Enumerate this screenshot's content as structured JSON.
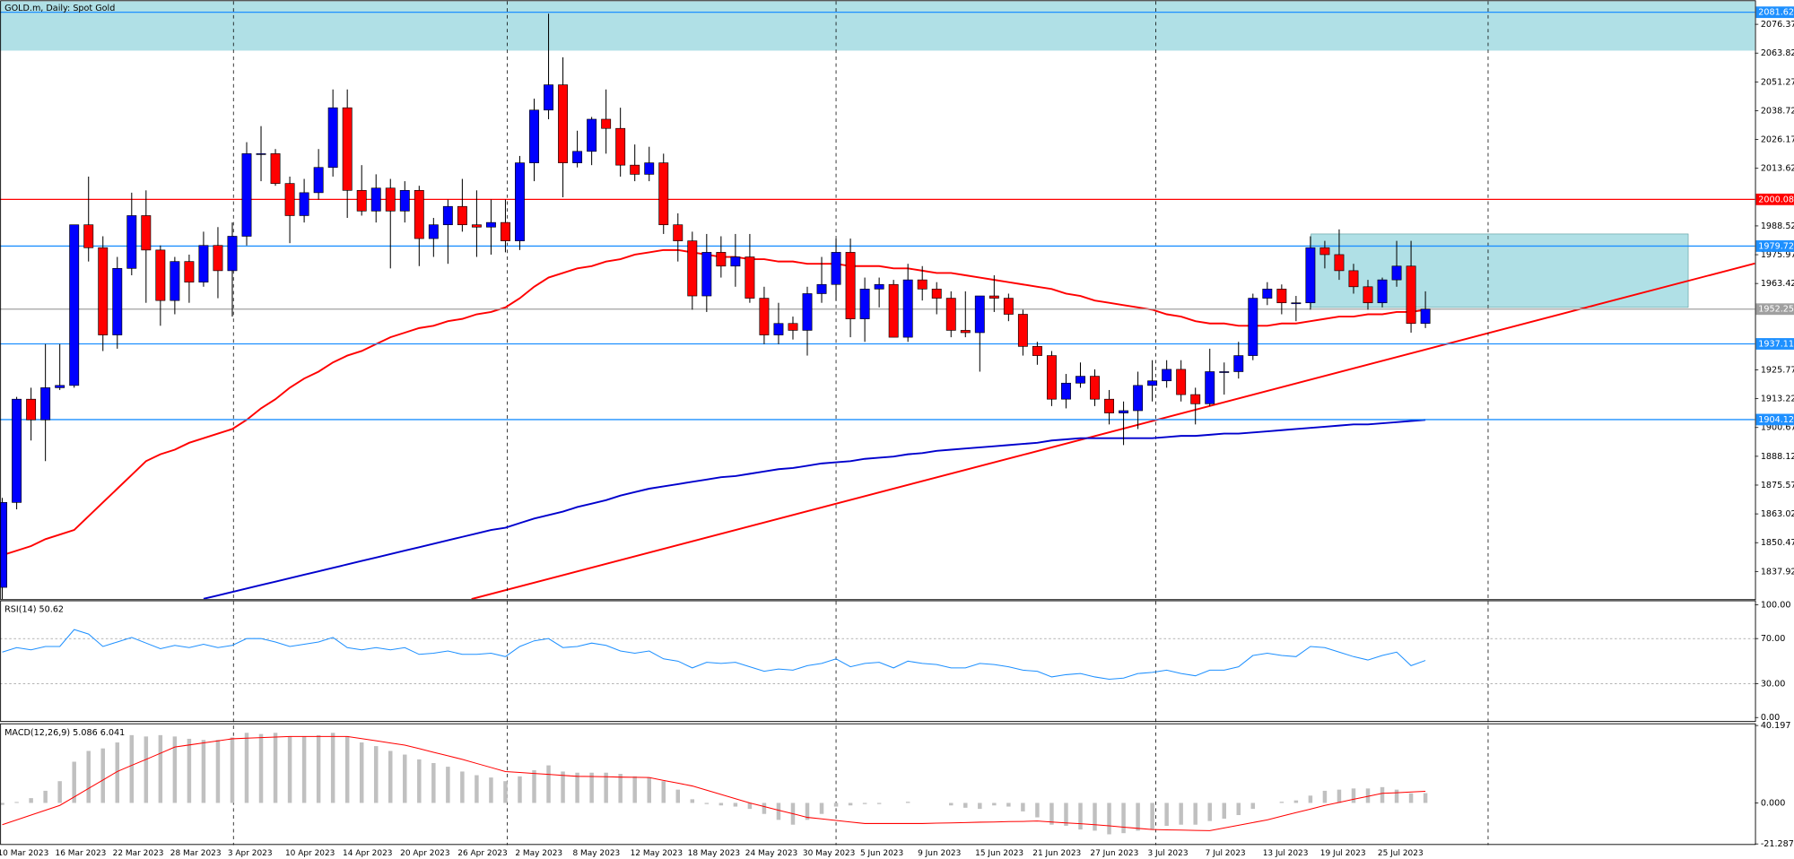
{
  "chart_data": [
    {
      "type": "candlestick",
      "title": "GOLD.m, Daily: Spot Gold",
      "categories": [
        "10 Mar 2023",
        null,
        null,
        null,
        "16 Mar 2023",
        null,
        null,
        null,
        "22 Mar 2023",
        null,
        null,
        null,
        "28 Mar 2023",
        null,
        null,
        null,
        "3 Apr 2023",
        null,
        null,
        null,
        "10 Apr 2023",
        null,
        null,
        null,
        "14 Apr 2023",
        null,
        null,
        null,
        "20 Apr 2023",
        null,
        null,
        null,
        "26 Apr 2023",
        null,
        null,
        null,
        "2 May 2023",
        null,
        null,
        null,
        "8 May 2023",
        null,
        null,
        null,
        "12 May 2023",
        null,
        null,
        null,
        "18 May 2023",
        null,
        null,
        null,
        "24 May 2023",
        null,
        null,
        null,
        "30 May 2023",
        null,
        null,
        null,
        "5 Jun 2023",
        null,
        null,
        null,
        "9 Jun 2023",
        null,
        null,
        null,
        "15 Jun 2023",
        null,
        null,
        null,
        "21 Jun 2023",
        null,
        null,
        null,
        "27 Jun 2023",
        null,
        null,
        null,
        "3 Jul 2023",
        null,
        null,
        null,
        "7 Jul 2023",
        null,
        null,
        null,
        "13 Jul 2023",
        null,
        null,
        null,
        "19 Jul 2023",
        null,
        null,
        null,
        "25 Jul 2023",
        null,
        null,
        null
      ],
      "open": [
        1831,
        1868,
        1913,
        1904,
        1918,
        1919,
        1989,
        1979,
        1941,
        1970,
        1993,
        1978,
        1956,
        1973,
        1964,
        1980,
        1969,
        1984,
        2020,
        2020,
        2007,
        1993,
        2003,
        2014,
        2040,
        2004,
        1995,
        2005,
        1995,
        2004,
        1983,
        1989,
        1997,
        1989,
        1988,
        1990,
        1982,
        2016,
        2039,
        2050,
        2016,
        2021,
        2035,
        2031,
        2015,
        2011,
        2016,
        1989,
        1982,
        1958,
        1977,
        1971,
        1975,
        1957,
        1941,
        1946,
        1943,
        1959,
        1963,
        1977,
        1948,
        1961,
        1963,
        1940,
        1965,
        1961,
        1957,
        1943,
        1942,
        1958,
        1957,
        1950,
        1936,
        1932,
        1913,
        1920,
        1923,
        1913,
        1907,
        1908,
        1919,
        1921,
        1926,
        1915,
        1911,
        1925,
        1925,
        1932,
        1957,
        1961,
        1955,
        1955,
        1979,
        1976,
        1969,
        1962,
        1955,
        1965,
        1971,
        1946
      ],
      "high": [
        1870,
        1914,
        1918,
        1937,
        1937,
        1989,
        2010,
        1984,
        1975,
        2003,
        2004,
        1980,
        1975,
        1976,
        1986,
        1988,
        1990,
        2025,
        2032,
        2022,
        2010,
        2009,
        2022,
        2048,
        2048,
        2015,
        2011,
        2009,
        2008,
        2006,
        1992,
        2000,
        2009,
        2004,
        2000,
        2000,
        2019,
        2044,
        2081,
        2062,
        2030,
        2036,
        2048,
        2040,
        2024,
        2023,
        2020,
        1994,
        1986,
        1985,
        1984,
        1985,
        1985,
        1962,
        1955,
        1949,
        1962,
        1975,
        1983,
        1983,
        1966,
        1966,
        1965,
        1972,
        1971,
        1964,
        1960,
        1960,
        1958,
        1967,
        1959,
        1952,
        1938,
        1934,
        1924,
        1929,
        1926,
        1917,
        1912,
        1925,
        1930,
        1930,
        1930,
        1918,
        1935,
        1929,
        1938,
        1959,
        1964,
        1963,
        1958,
        1984,
        1982,
        1987,
        1972,
        1965,
        1966,
        1982,
        1982,
        1960
      ],
      "low": [
        1819,
        1865,
        1895,
        1886,
        1917,
        1918,
        1973,
        1934,
        1935,
        1967,
        1955,
        1945,
        1950,
        1955,
        1962,
        1957,
        1949,
        1980,
        2008,
        2006,
        1981,
        1990,
        2000,
        2010,
        1992,
        1993,
        1990,
        1970,
        1990,
        1971,
        1975,
        1972,
        1986,
        1975,
        1976,
        1977,
        1978,
        2008,
        2035,
        2001,
        2014,
        2015,
        2020,
        2010,
        2008,
        2008,
        1985,
        1973,
        1952,
        1951,
        1966,
        1962,
        1955,
        1937,
        1937,
        1939,
        1932,
        1955,
        1956,
        1940,
        1938,
        1953,
        1940,
        1938,
        1956,
        1950,
        1940,
        1940,
        1925,
        1951,
        1947,
        1932,
        1928,
        1910,
        1909,
        1918,
        1910,
        1902,
        1893,
        1900,
        1912,
        1918,
        1912,
        1902,
        1910,
        1915,
        1922,
        1930,
        1954,
        1950,
        1947,
        1952,
        1970,
        1965,
        1959,
        1952,
        1953,
        1962,
        1942,
        1944
      ],
      "close": [
        1868,
        1913,
        1904,
        1918,
        1919,
        1989,
        1979,
        1941,
        1970,
        1993,
        1978,
        1956,
        1973,
        1964,
        1980,
        1969,
        1984,
        2020,
        2020,
        2007,
        1993,
        2003,
        2014,
        2040,
        2004,
        1995,
        2005,
        1995,
        2004,
        1983,
        1989,
        1997,
        1989,
        1988,
        1990,
        1982,
        2016,
        2039,
        2050,
        2016,
        2021,
        2035,
        2031,
        2015,
        2011,
        2016,
        1989,
        1982,
        1958,
        1977,
        1971,
        1975,
        1957,
        1941,
        1946,
        1943,
        1959,
        1963,
        1977,
        1948,
        1961,
        1963,
        1940,
        1965,
        1961,
        1957,
        1943,
        1942,
        1958,
        1957,
        1950,
        1936,
        1932,
        1913,
        1920,
        1923,
        1913,
        1907,
        1908,
        1919,
        1921,
        1926,
        1915,
        1911,
        1925,
        1925,
        1932,
        1957,
        1961,
        1955,
        1955,
        1979,
        1976,
        1969,
        1962,
        1955,
        1965,
        1971,
        1946,
        1952.25
      ],
      "up_color": "#0000ff",
      "down_color": "#ff0000",
      "series": [
        {
          "color": "#ff0000",
          "values": [
            1845,
            1847,
            1849,
            1852,
            1854,
            1856,
            1862,
            1868,
            1874,
            1880,
            1886,
            1889,
            1891,
            1894,
            1896,
            1898,
            1900,
            1904,
            1909,
            1913,
            1918,
            1922,
            1925,
            1929,
            1932,
            1934,
            1937,
            1940,
            1942,
            1944,
            1945,
            1947,
            1948,
            1950,
            1951,
            1953,
            1957,
            1962,
            1966,
            1968,
            1970,
            1971,
            1973,
            1974,
            1976,
            1977,
            1978,
            1978,
            1977,
            1976,
            1975,
            1975,
            1974,
            1974,
            1973,
            1973,
            1972,
            1972,
            1972,
            1971,
            1971,
            1971,
            1970,
            1970,
            1969,
            1968,
            1968,
            1967,
            1966,
            1965,
            1964,
            1963,
            1962,
            1961,
            1959,
            1958,
            1956,
            1955,
            1954,
            1953,
            1952,
            1950,
            1949,
            1947,
            1946,
            1946,
            1945,
            1945,
            1945,
            1946,
            1946,
            1947,
            1948,
            1949,
            1949,
            1950,
            1950,
            1951,
            1951,
            1952
          ]
        },
        {
          "color": "#0000cd",
          "values": [
            null,
            null,
            null,
            null,
            null,
            null,
            null,
            null,
            null,
            null,
            null,
            null,
            null,
            null,
            1826,
            1827.5,
            1829,
            1830.5,
            1832,
            1833.5,
            1835,
            1836.5,
            1838,
            1839.5,
            1841,
            1842.5,
            1844,
            1845.5,
            1847,
            1848.5,
            1850,
            1851.5,
            1853,
            1854.5,
            1856,
            1857,
            1859,
            1861,
            1862.5,
            1864,
            1866,
            1867.5,
            1869,
            1871,
            1872.5,
            1874,
            1875,
            1876,
            1877,
            1878,
            1879,
            1879.5,
            1880.5,
            1881.5,
            1882.5,
            1883,
            1884,
            1885,
            1885.5,
            1886,
            1887,
            1887.5,
            1888,
            1889,
            1889.5,
            1890.5,
            1891,
            1891.5,
            1892,
            1892.5,
            1893,
            1893.5,
            1894,
            1895,
            1895.5,
            1896,
            1896,
            1896,
            1896,
            1896,
            1896,
            1896.5,
            1897,
            1897,
            1897.5,
            1898,
            1898,
            1898.5,
            1899,
            1899.5,
            1900,
            1900.5,
            1901,
            1901.5,
            1902,
            1902,
            1902.5,
            1903,
            1903.5,
            1904
          ]
        }
      ],
      "levels": [
        {
          "value": 2081.62,
          "color": "#1e90ff"
        },
        {
          "value": 2000.08,
          "color": "#ff0000"
        },
        {
          "value": 1979.72,
          "color": "#1e90ff"
        },
        {
          "value": 1952.25,
          "color": "#a0a0a0"
        },
        {
          "value": 1937.11,
          "color": "#1e90ff"
        },
        {
          "value": 1904.12,
          "color": "#1e90ff"
        }
      ],
      "zones": [
        {
          "low": 2064.9,
          "high": 2086.4,
          "color": "#b0e0e6"
        },
        {
          "low": 1953,
          "high": 1985,
          "color": "#b0e0e6"
        }
      ],
      "ylim": [
        1825.9,
        2086.4
      ],
      "yticks": [
        1837.92,
        1850.47,
        1863.02,
        1875.57,
        1888.12,
        1900.67,
        1913.22,
        1925.77,
        1963.42,
        1975.97,
        1988.52,
        2013.62,
        2026.17,
        2038.72,
        2051.27,
        2063.82,
        2076.37
      ]
    },
    {
      "type": "line",
      "title": "RSI(14)",
      "series": [
        {
          "color": "#1e90ff",
          "values": [
            58,
            62,
            60,
            63,
            63,
            78,
            74,
            63,
            67,
            71,
            66,
            61,
            64,
            62,
            65,
            62,
            64,
            70,
            70,
            67,
            63,
            65,
            67,
            71,
            62,
            60,
            62,
            60,
            62,
            56,
            57,
            59,
            56,
            56,
            57,
            54,
            63,
            68,
            70,
            62,
            63,
            66,
            64,
            59,
            57,
            59,
            52,
            50,
            44,
            49,
            48,
            49,
            45,
            41,
            43,
            42,
            46,
            48,
            52,
            45,
            48,
            49,
            44,
            50,
            48,
            47,
            44,
            44,
            48,
            47,
            45,
            42,
            41,
            36,
            38,
            39,
            36,
            34,
            35,
            39,
            40,
            42,
            39,
            37,
            42,
            42,
            45,
            55,
            57,
            55,
            54,
            63,
            62,
            58,
            54,
            51,
            55,
            58,
            46,
            50.62
          ]
        }
      ],
      "ylim": [
        -3,
        103
      ],
      "yticks": [
        {
          "value": 0,
          "label": "0.00"
        },
        {
          "value": 30,
          "label": "30.00"
        },
        {
          "value": 70,
          "label": "70.00"
        },
        {
          "value": 100,
          "label": "100.00"
        }
      ]
    },
    {
      "type": "macd",
      "title": "MACD(12,26,9)",
      "histogram": {
        "color": "#c0c0c0",
        "values": [
          -1.0,
          0.5,
          2.5,
          6.3,
          11.3,
          21.4,
          27.0,
          28.3,
          31.4,
          35.2,
          34.5,
          35.2,
          34.5,
          33.3,
          32.7,
          32.7,
          34.0,
          36.4,
          35.8,
          36.4,
          34.5,
          34.5,
          35.2,
          36.4,
          34.5,
          31.4,
          29.5,
          27.0,
          25.1,
          22.6,
          20.7,
          18.8,
          16.3,
          14.4,
          13.2,
          11.3,
          13.8,
          17.0,
          19.5,
          16.3,
          15.7,
          15.7,
          15.7,
          15.1,
          13.8,
          13.2,
          11.3,
          6.9,
          1.9,
          -0.6,
          -1.3,
          -1.9,
          -3.1,
          -5.7,
          -8.8,
          -11.3,
          -8.8,
          -5.7,
          -1.9,
          -1.3,
          -0.6,
          -0.6,
          0.0,
          0.6,
          0.0,
          0.0,
          -1.3,
          -2.5,
          -3.1,
          -1.3,
          -1.9,
          -4.4,
          -7.5,
          -11.3,
          -11.9,
          -13.8,
          -14.4,
          -16.3,
          -15.7,
          -14.4,
          -13.8,
          -11.9,
          -11.3,
          -11.3,
          -9.4,
          -8.2,
          -6.3,
          -3.1,
          0.0,
          0.6,
          1.3,
          3.8,
          6.3,
          6.9,
          7.5,
          7.5,
          8.2,
          6.9,
          5.0,
          5.086
        ]
      },
      "signal": {
        "color": "#ff0000",
        "values": [
          -11.3,
          -8.8,
          -6.3,
          -3.8,
          -1.3,
          3.1,
          7.5,
          11.9,
          16.3,
          19.5,
          22.6,
          25.8,
          29.0,
          30.1,
          31.2,
          32.2,
          33.3,
          33.6,
          33.9,
          34.2,
          34.5,
          34.5,
          34.5,
          34.5,
          34.5,
          33.4,
          32.3,
          31.1,
          30.0,
          28.2,
          26.3,
          24.5,
          22.6,
          20.5,
          18.4,
          16.3,
          15.8,
          15.3,
          14.8,
          14.3,
          13.8,
          13.7,
          13.6,
          13.4,
          13.3,
          13.2,
          11.7,
          10.3,
          8.8,
          6.6,
          4.4,
          2.2,
          0.0,
          -1.9,
          -3.8,
          -5.6,
          -7.5,
          -8.3,
          -9.1,
          -9.9,
          -10.7,
          -10.7,
          -10.7,
          -10.7,
          -10.7,
          -10.5,
          -10.4,
          -10.2,
          -10.0,
          -9.9,
          -9.7,
          -9.6,
          -9.4,
          -9.9,
          -10.4,
          -10.8,
          -11.3,
          -11.9,
          -12.6,
          -13.2,
          -13.8,
          -14.0,
          -14.1,
          -14.3,
          -14.4,
          -13.0,
          -11.6,
          -10.2,
          -8.8,
          -6.9,
          -5.0,
          -3.2,
          -1.3,
          0.3,
          1.9,
          3.4,
          5.0,
          5.3,
          5.7,
          6.041
        ]
      },
      "ylim": [
        -21.287,
        40.197
      ],
      "yticks": [
        -21.287,
        {
          "value": 0,
          "label": "0.000"
        },
        40.197
      ]
    }
  ]
}
